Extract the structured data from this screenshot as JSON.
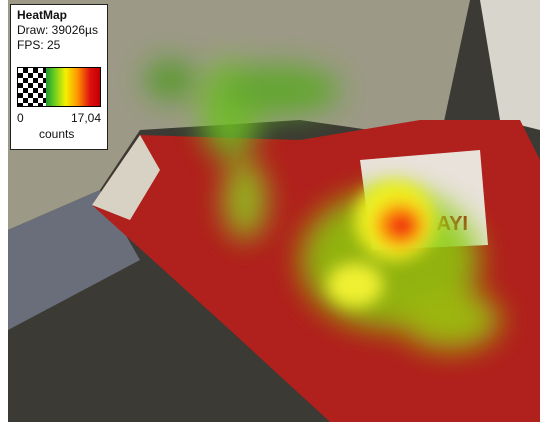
{
  "panel": {
    "title": "HeatMap",
    "draw": "Draw: 39026µs",
    "fps": "FPS: 25",
    "scale_min": "0",
    "scale_max": "17,04",
    "unit": "counts"
  },
  "photo": {
    "label": "AYI"
  }
}
